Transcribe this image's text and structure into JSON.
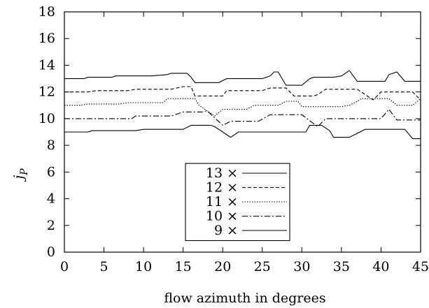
{
  "chart_data": {
    "type": "line",
    "title": "",
    "xlabel": "flow azimuth in degrees",
    "ylabel": "j",
    "ylabel_subscript": "P",
    "xlim": [
      0,
      45
    ],
    "ylim": [
      0,
      18
    ],
    "xticks": [
      0,
      5,
      10,
      15,
      20,
      25,
      30,
      35,
      40,
      45
    ],
    "yticks": [
      0,
      2,
      4,
      6,
      8,
      10,
      12,
      14,
      16,
      18
    ],
    "grid": false,
    "legend_position": "center-bottom",
    "series": [
      {
        "name": "13 ×",
        "dash": "solid",
        "x": [
          0,
          2.5,
          3,
          6,
          6.5,
          10,
          11,
          13,
          13.5,
          15,
          15.5,
          16,
          16.5,
          19.5,
          20.5,
          24,
          25,
          26,
          26.5,
          27,
          28,
          29,
          30,
          31,
          31.5,
          34,
          35,
          36,
          37,
          38,
          40.5,
          41,
          42,
          43,
          45
        ],
        "y": [
          13.0,
          13.0,
          13.1,
          13.1,
          13.2,
          13.2,
          13.2,
          13.3,
          13.4,
          13.4,
          13.4,
          13.1,
          12.7,
          12.7,
          13.0,
          13.0,
          13.0,
          13.2,
          13.5,
          13.5,
          12.5,
          12.5,
          12.5,
          13.0,
          13.1,
          13.1,
          13.2,
          13.6,
          12.8,
          12.8,
          12.8,
          13.3,
          13.5,
          12.8,
          12.8
        ]
      },
      {
        "name": "12 ×",
        "dash": "dashed",
        "x": [
          0,
          3,
          4,
          8,
          9,
          13.5,
          15,
          16,
          16.5,
          20,
          20.5,
          25,
          26,
          28,
          29,
          31.5,
          32,
          33,
          36,
          37,
          39,
          40,
          44,
          45
        ],
        "y": [
          12.0,
          12.0,
          12.1,
          12.1,
          12.2,
          12.2,
          12.4,
          12.4,
          11.7,
          11.7,
          12.1,
          12.1,
          12.3,
          12.3,
          11.7,
          11.7,
          11.8,
          12.2,
          12.2,
          12.2,
          11.4,
          12.0,
          12.0,
          11.4
        ]
      },
      {
        "name": "11 ×",
        "dash": "dotted",
        "x": [
          0,
          2,
          3,
          7,
          8,
          12.5,
          13,
          16.5,
          17,
          19,
          20,
          23,
          24,
          27,
          28,
          29.5,
          30,
          35,
          36,
          37,
          37.5,
          41,
          42,
          44,
          45
        ],
        "y": [
          11.0,
          11.0,
          11.1,
          11.1,
          11.2,
          11.2,
          11.5,
          11.5,
          11.0,
          10.2,
          10.7,
          10.7,
          11.0,
          11.0,
          11.3,
          11.3,
          10.9,
          10.9,
          11.0,
          11.3,
          11.5,
          11.5,
          11.0,
          11.0,
          11.5
        ]
      },
      {
        "name": "10 ×",
        "dash": "dashdot",
        "x": [
          0,
          2.5,
          3,
          8.5,
          9,
          13.5,
          15,
          17.5,
          18,
          20,
          21,
          24.5,
          26,
          29,
          30,
          32,
          33,
          37,
          38,
          40,
          41,
          42,
          45
        ],
        "y": [
          10.0,
          10.0,
          10.0,
          10.0,
          10.2,
          10.2,
          10.5,
          10.5,
          10.6,
          9.5,
          9.8,
          9.8,
          10.3,
          10.3,
          10.3,
          9.4,
          10.0,
          10.0,
          10.0,
          10.0,
          10.7,
          9.9,
          9.9
        ]
      },
      {
        "name": "9 ×",
        "dash": "solid",
        "x": [
          0,
          3,
          3.5,
          9,
          10,
          15,
          16,
          18.5,
          19,
          21,
          22,
          27,
          28,
          29.5,
          30.5,
          31,
          32.5,
          33.5,
          34,
          36,
          38,
          38.5,
          42,
          43,
          44,
          45
        ],
        "y": [
          9.0,
          9.0,
          9.1,
          9.1,
          9.2,
          9.2,
          9.5,
          9.5,
          9.4,
          8.6,
          9.0,
          9.0,
          9.0,
          9.0,
          9.0,
          9.5,
          9.5,
          9.1,
          8.6,
          8.6,
          9.2,
          9.2,
          9.2,
          9.2,
          8.5,
          8.5
        ]
      }
    ]
  }
}
